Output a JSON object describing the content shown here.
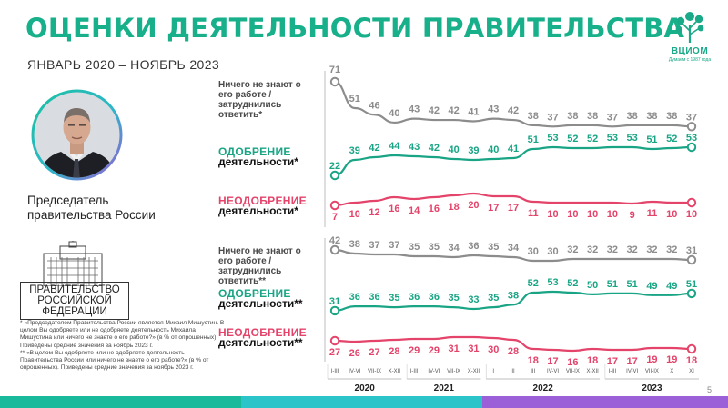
{
  "header": {
    "title": "ОЦЕНКИ ДЕЯТЕЛЬНОСТИ ПРАВИТЕЛЬСТВА",
    "subtitle": "ЯНВАРЬ 2020 – НОЯБРЬ 2023"
  },
  "logo": {
    "name": "ВЦИОМ",
    "tagline": "Думаем с 1987 года"
  },
  "person": {
    "caption_line1": "Председатель",
    "caption_line2": "правительства России"
  },
  "government": {
    "caption_line1": "ПРАВИТЕЛЬСТВО",
    "caption_line2": "РОССИЙСКОЙ",
    "caption_line3": "ФЕДЕРАЦИИ"
  },
  "labels": {
    "dk_1": "Ничего не знают о",
    "dk_2": "его работе /",
    "dk_3": "затруднились",
    "dk_4_pm": "ответить*",
    "dk_4_gov": "ответить**",
    "ap_1": "ОДОБРЕНИЕ",
    "ap_2_pm": "деятельности*",
    "ap_2_gov": "деятельности**",
    "ds_1": "НЕОДОБРЕНИЕ",
    "ds_2_pm": "деятельности*",
    "ds_2_gov": "деятельности**"
  },
  "footnotes": {
    "f1": "* «Председателем Правительства России является Михаил Мишустин. В целом Вы одобряете или не одобряете деятельность Михаила Мишустина или ничего не знаете о его работе?» (в % от опрошенных)",
    "f1b": "Приведены средние значения за ноябрь 2023 г.",
    "f2": "** «В целом Вы одобряете или не одобряете деятельность Правительства России или ничего не знаете о его работе?» (в % от опрошенных). Приведены средние значения за ноябрь 2023 г."
  },
  "page_number": "5",
  "colors": {
    "brand_green": "#17b08a",
    "approve": "#19a585",
    "disapprove": "#e4436a",
    "dont_know": "#8c8c8c",
    "bar_teal": "#13b9a4",
    "bar_purple": "#9b59d6"
  },
  "chart_data": [
    {
      "type": "line",
      "categories": [
        "I-III",
        "IV-VI",
        "VII-IX",
        "X-XII",
        "I-III",
        "IV-VI",
        "VII-IX",
        "X-XII",
        "I",
        "II",
        "III",
        "IV-VI",
        "VII-IX",
        "X-XII",
        "I-III",
        "IV-VI",
        "VII-IX",
        "X",
        "XI"
      ],
      "years": [
        {
          "label": "2020",
          "span": [
            0,
            3
          ]
        },
        {
          "label": "2021",
          "span": [
            4,
            7
          ]
        },
        {
          "label": "2022",
          "span": [
            8,
            13
          ]
        },
        {
          "label": "2023",
          "span": [
            14,
            18
          ]
        }
      ],
      "series": [
        {
          "name": "Ничего не знают о его работе / затруднились ответить*",
          "values": [
            71,
            51,
            46,
            40,
            43,
            42,
            42,
            41,
            43,
            42,
            38,
            37,
            38,
            38,
            37,
            38,
            38,
            38,
            37
          ]
        },
        {
          "name": "ОДОБРЕНИЕ деятельности*",
          "values": [
            22,
            39,
            42,
            44,
            43,
            42,
            40,
            39,
            40,
            41,
            51,
            53,
            52,
            52,
            53,
            53,
            51,
            52,
            53
          ]
        },
        {
          "name": "НЕОДОБРЕНИЕ деятельности*",
          "values": [
            7,
            10,
            12,
            16,
            14,
            16,
            18,
            20,
            17,
            17,
            11,
            10,
            10,
            10,
            10,
            9,
            11,
            10,
            10
          ]
        }
      ]
    },
    {
      "type": "line",
      "categories": [
        "I-III",
        "IV-VI",
        "VII-IX",
        "X-XII",
        "I-III",
        "IV-VI",
        "VII-IX",
        "X-XII",
        "I",
        "II",
        "III",
        "IV-VI",
        "VII-IX",
        "X-XII",
        "I-III",
        "IV-VI",
        "VII-IX",
        "X",
        "XI"
      ],
      "series": [
        {
          "name": "Ничего не знают о его работе / затруднились ответить**",
          "values": [
            42,
            38,
            37,
            37,
            35,
            35,
            34,
            36,
            35,
            34,
            30,
            30,
            32,
            32,
            32,
            32,
            32,
            32,
            31
          ]
        },
        {
          "name": "ОДОБРЕНИЕ деятельности**",
          "values": [
            31,
            36,
            36,
            35,
            36,
            36,
            35,
            33,
            35,
            38,
            52,
            53,
            52,
            50,
            51,
            51,
            49,
            49,
            51
          ]
        },
        {
          "name": "НЕОДОБРЕНИЕ деятельности**",
          "values": [
            27,
            26,
            27,
            28,
            29,
            29,
            31,
            31,
            30,
            28,
            18,
            17,
            16,
            18,
            17,
            17,
            19,
            19,
            18
          ]
        }
      ]
    }
  ]
}
